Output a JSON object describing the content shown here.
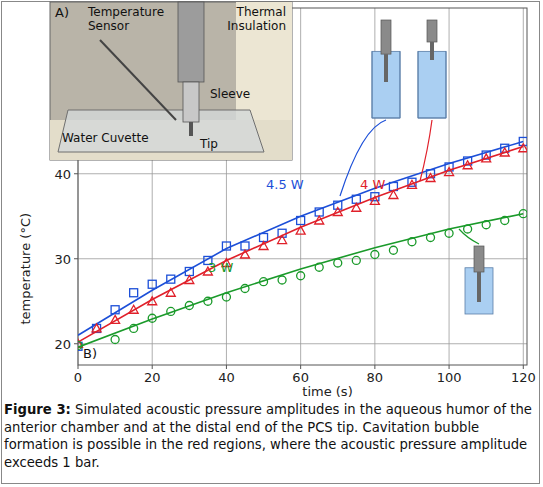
{
  "chart_data": {
    "type": "scatter",
    "xlabel": "time (s)",
    "ylabel": "temperature (°C)",
    "panel_label": "B)",
    "xlim": [
      0,
      121
    ],
    "ylim": [
      17.5,
      59.5
    ],
    "xticks": [
      0,
      20,
      40,
      60,
      80,
      100,
      120
    ],
    "yticks": [
      20,
      30,
      40
    ],
    "grid": true,
    "series": [
      {
        "name": "4.5 W",
        "color": "#1c4fd8",
        "marker": "square",
        "x": [
          0,
          5,
          10,
          15,
          20,
          25,
          30,
          35,
          40,
          45,
          50,
          55,
          60,
          65,
          70,
          75,
          80,
          85,
          90,
          95,
          100,
          105,
          110,
          115,
          120
        ],
        "values": [
          19.7,
          21.8,
          24,
          26,
          27,
          27.6,
          28.5,
          29.8,
          31.5,
          31.5,
          32.5,
          33,
          34.5,
          35.5,
          36.3,
          37,
          37.3,
          38.5,
          39,
          40,
          40.8,
          41.5,
          42.2,
          43,
          43.8
        ],
        "fit_x": [
          0,
          20,
          40,
          60,
          80,
          100,
          120
        ],
        "fit_values": [
          21,
          26.3,
          31.2,
          35,
          38.3,
          41.2,
          43.8
        ]
      },
      {
        "name": "4 W",
        "color": "#e0202a",
        "marker": "triangle",
        "x": [
          0,
          5,
          10,
          15,
          20,
          25,
          30,
          35,
          40,
          45,
          50,
          55,
          60,
          65,
          70,
          75,
          80,
          85,
          90,
          95,
          100,
          105,
          110,
          115,
          120
        ],
        "values": [
          20,
          21.8,
          22.8,
          24,
          25,
          26,
          27.5,
          28.5,
          29.5,
          30.5,
          31.5,
          32.2,
          33.3,
          34.5,
          35.5,
          36,
          36.8,
          37.5,
          38.7,
          39.5,
          40.2,
          41,
          41.8,
          42.5,
          43
        ],
        "fit_x": [
          0,
          20,
          40,
          60,
          80,
          100,
          120
        ],
        "fit_values": [
          20.2,
          25.2,
          29.8,
          33.7,
          37.2,
          40.4,
          43.2
        ]
      },
      {
        "name": "3 W",
        "color": "#1a9a2a",
        "marker": "circle",
        "x": [
          0,
          10,
          15,
          20,
          25,
          30,
          35,
          40,
          45,
          50,
          55,
          60,
          65,
          70,
          75,
          80,
          85,
          90,
          95,
          100,
          105,
          110,
          115,
          120
        ],
        "values": [
          19.8,
          20.5,
          21.8,
          23,
          23.8,
          24.5,
          25,
          25.5,
          26.5,
          27.3,
          27.5,
          28,
          29,
          29.5,
          29.8,
          30.5,
          31,
          32,
          32.5,
          33,
          33.5,
          34,
          34.5,
          35.3
        ],
        "fit_x": [
          0,
          20,
          40,
          60,
          80,
          100,
          120
        ],
        "fit_values": [
          19.6,
          22.9,
          26,
          28.8,
          31.3,
          33.5,
          35.3
        ]
      }
    ]
  },
  "inset": {
    "panel_label": "A)",
    "labels": [
      {
        "lines": [
          "Temperature",
          "Sensor"
        ]
      },
      {
        "lines": [
          "Thermal",
          "Insulation"
        ]
      },
      {
        "lines": [
          "Sleeve"
        ]
      },
      {
        "lines": [
          "Tip"
        ]
      },
      {
        "lines": [
          "Water Cuvette"
        ]
      }
    ]
  },
  "caption": {
    "label": "Figure 3:",
    "text": "Simulated acoustic pressure amplitudes in the aqueous humor of the anterior chamber and at the distal end of the PCS tip. Cavitation bubble formation is possible in the red regions, where the acoustic pressure amplitude exceeds 1 bar."
  }
}
